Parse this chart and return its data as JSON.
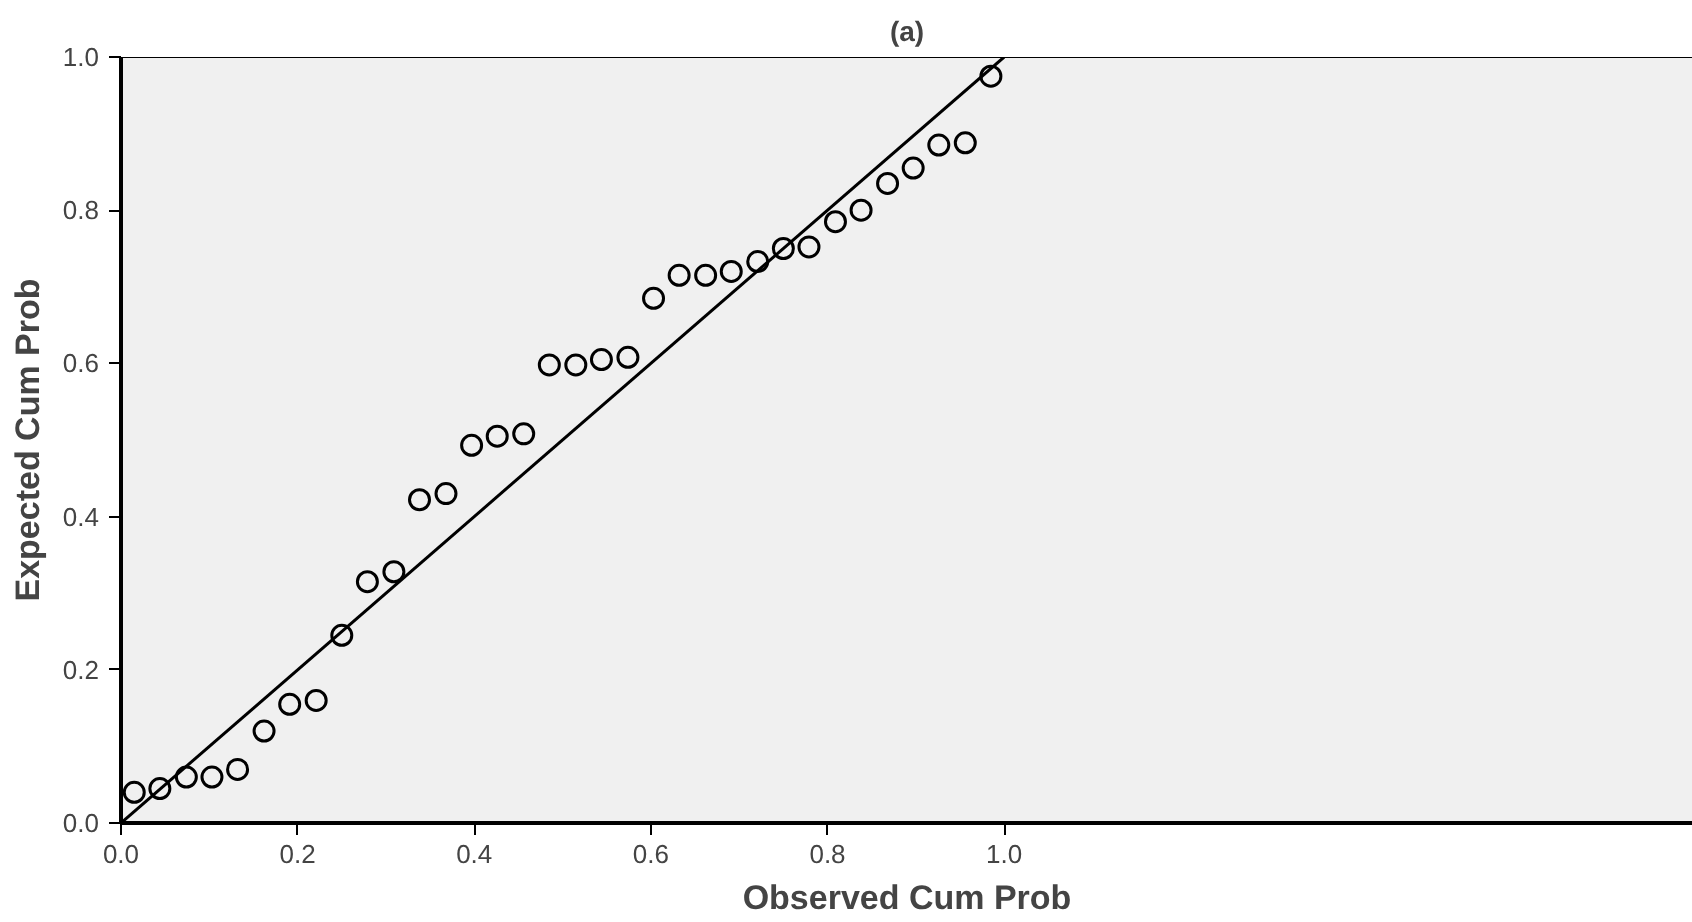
{
  "chart_data": {
    "type": "scatter",
    "title": "(a)",
    "xlabel": "Observed Cum Prob",
    "ylabel": "Expected Cum Prob",
    "xlim": [
      0,
      1.78
    ],
    "ylim": [
      0,
      1
    ],
    "xticks": [
      {
        "value": 0,
        "label": "0.0"
      },
      {
        "value": 0.2,
        "label": "0.2"
      },
      {
        "value": 0.4,
        "label": "0.4"
      },
      {
        "value": 0.6,
        "label": "0.6"
      },
      {
        "value": 0.8,
        "label": "0.8"
      },
      {
        "value": 1,
        "label": "1.0"
      }
    ],
    "yticks": [
      {
        "value": 0,
        "label": "0.0"
      },
      {
        "value": 0.2,
        "label": "0.2"
      },
      {
        "value": 0.4,
        "label": "0.4"
      },
      {
        "value": 0.6,
        "label": "0.6"
      },
      {
        "value": 0.8,
        "label": "0.8"
      },
      {
        "value": 1,
        "label": "1.0"
      }
    ],
    "grid": false,
    "series": [
      {
        "marker": "circle",
        "color": "#000000",
        "x": [
          0.015,
          0.044,
          0.074,
          0.103,
          0.132,
          0.162,
          0.191,
          0.221,
          0.25,
          0.279,
          0.309,
          0.338,
          0.368,
          0.397,
          0.426,
          0.456,
          0.485,
          0.515,
          0.544,
          0.574,
          0.603,
          0.632,
          0.662,
          0.691,
          0.721,
          0.75,
          0.779,
          0.809,
          0.838,
          0.868,
          0.897,
          0.926,
          0.956,
          0.985
        ],
        "values": [
          0.04,
          0.045,
          0.06,
          0.06,
          0.07,
          0.12,
          0.155,
          0.16,
          0.245,
          0.315,
          0.328,
          0.422,
          0.43,
          0.493,
          0.505,
          0.508,
          0.598,
          0.598,
          0.605,
          0.608,
          0.685,
          0.715,
          0.715,
          0.72,
          0.733,
          0.75,
          0.752,
          0.785,
          0.8,
          0.835,
          0.855,
          0.885,
          0.888,
          0.975
        ]
      },
      {
        "type": "line",
        "marker": "none",
        "color": "#000000",
        "x": [
          0,
          1
        ],
        "values": [
          0,
          1
        ]
      }
    ]
  }
}
